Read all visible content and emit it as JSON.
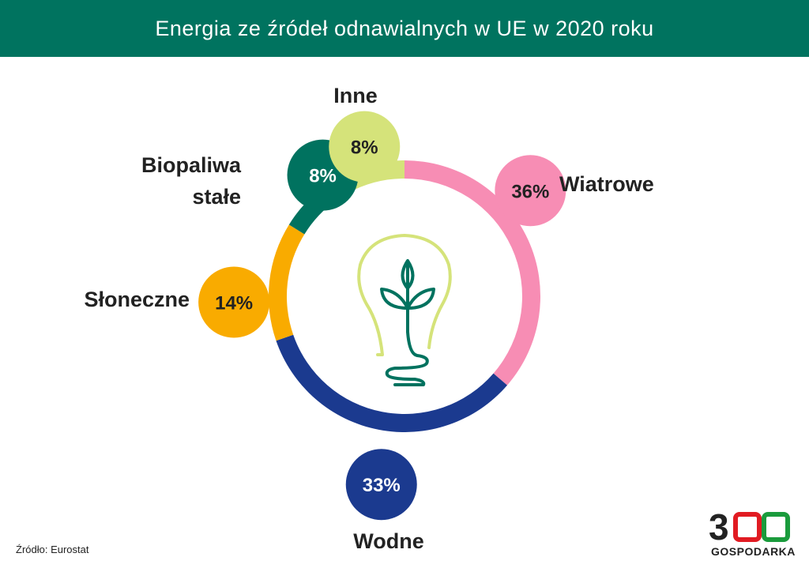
{
  "title": "Energia ze źródeł odnawialnych w UE w 2020 roku",
  "source": "Źródło: Eurostat",
  "logo": {
    "number": "300",
    "text": "GOSPODARKA"
  },
  "center_icon": "lightbulb-with-plant-icon",
  "chart_data": {
    "type": "pie",
    "style": "donut",
    "title": "Energia ze źródeł odnawialnych w UE w 2020 roku",
    "categories": [
      "Wiatrowe",
      "Wodne",
      "Słoneczne",
      "Biopaliwa stałe",
      "Inne"
    ],
    "values": [
      36,
      33,
      14,
      8,
      8
    ],
    "labels": [
      "36%",
      "33%",
      "14%",
      "8%",
      "8%"
    ],
    "colors": [
      "#f78db4",
      "#1b3a8f",
      "#f9ab00",
      "#00725f",
      "#d5e37a"
    ],
    "label_colors": [
      "#222222",
      "#ffffff",
      "#222222",
      "#ffffff",
      "#222222"
    ]
  }
}
